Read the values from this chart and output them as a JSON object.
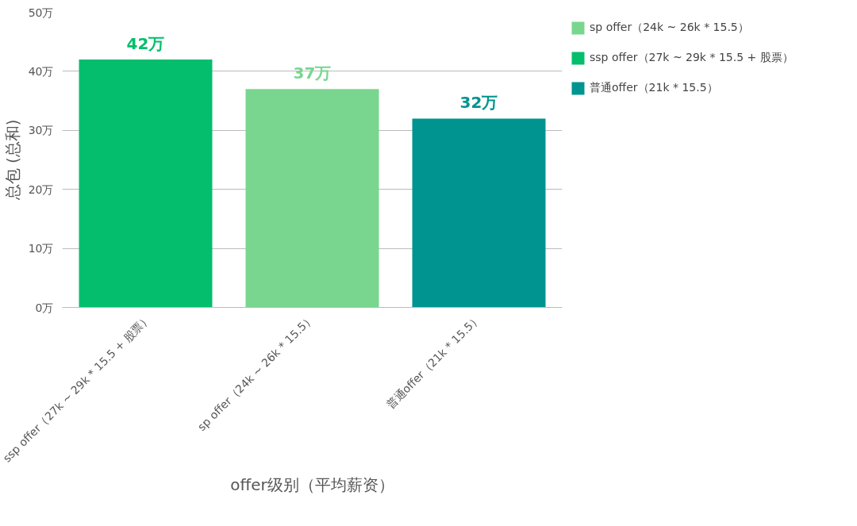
{
  "chart_data": {
    "type": "bar",
    "xlabel": "offer级别（平均薪资）",
    "ylabel": "总包 (总和)",
    "categories": [
      "ssp offer（27k ~ 29k * 15.5 + 股票）",
      "sp offer（24k ~ 26k * 15.5）",
      "普通offer（21k * 15.5）"
    ],
    "series": [
      {
        "name": "sp offer（24k ~ 26k * 15.5）",
        "color": "#79d68f",
        "values": [
          null,
          37,
          null
        ],
        "value_labels": [
          null,
          "37万",
          null
        ]
      },
      {
        "name": "ssp offer（27k ~ 29k * 15.5 + 股票）",
        "color": "#04be6d",
        "values": [
          42,
          null,
          null
        ],
        "value_labels": [
          "42万",
          null,
          null
        ]
      },
      {
        "name": "普通offer（21k * 15.5）",
        "color": "#009490",
        "values": [
          null,
          null,
          32
        ],
        "value_labels": [
          null,
          null,
          "32万"
        ]
      }
    ],
    "ylim": [
      0,
      50
    ],
    "yticks": [
      {
        "value": 0,
        "label": "0万"
      },
      {
        "value": 10,
        "label": "10万"
      },
      {
        "value": 20,
        "label": "20万"
      },
      {
        "value": 30,
        "label": "30万"
      },
      {
        "value": 40,
        "label": "40万"
      },
      {
        "value": 50,
        "label": "50万"
      }
    ],
    "grid": "y",
    "legend": "top right"
  }
}
